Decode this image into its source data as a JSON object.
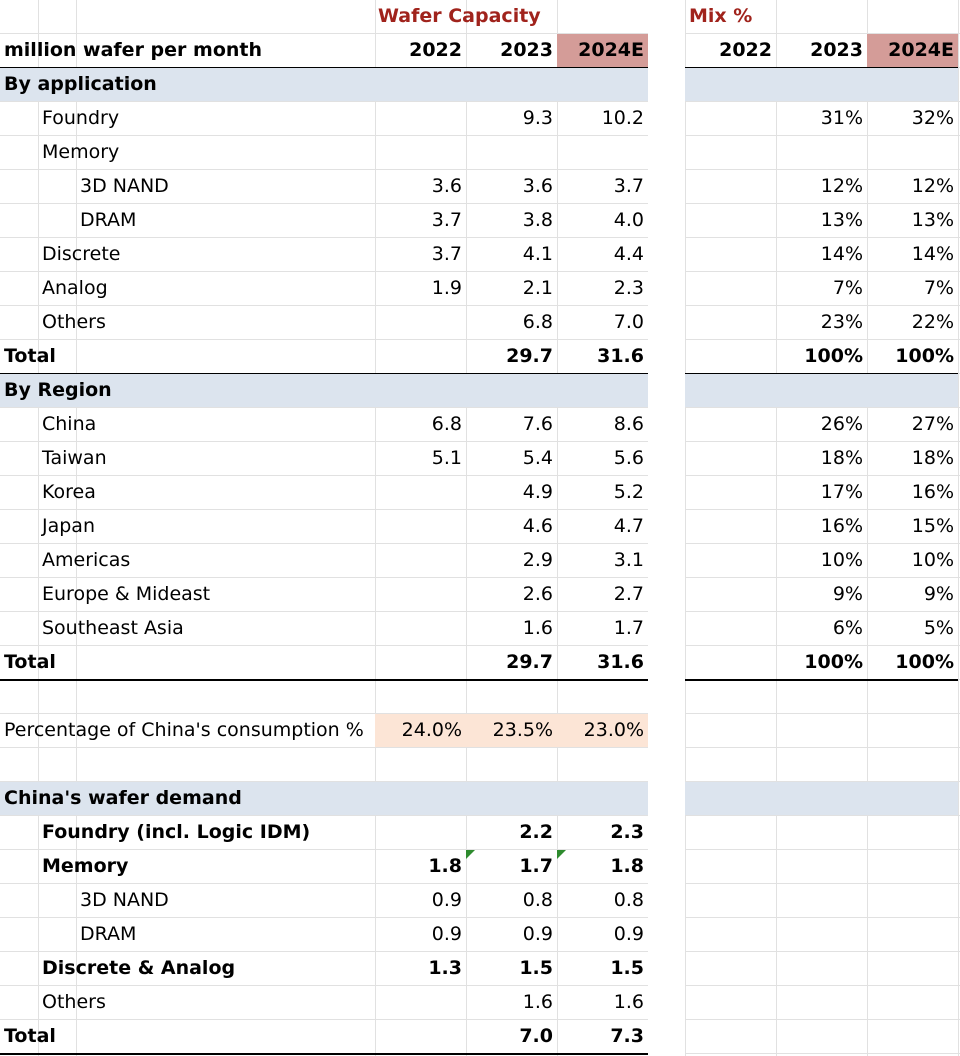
{
  "headings": {
    "wafer_capacity": "Wafer Capacity",
    "mix": "Mix %"
  },
  "unit_label": "million wafer per month",
  "years": [
    "2022",
    "2023",
    "2024E"
  ],
  "colors": {
    "heading_red": "#a0231c",
    "section_band": "#dce4ee",
    "highlight_2024E": "#d49c98",
    "china_share_fill": "#fce5d6"
  },
  "by_application": {
    "title": "By application",
    "rows": [
      {
        "label": "Foundry",
        "indent": 1,
        "bold": false,
        "cap": [
          "",
          "9.3",
          "10.2"
        ],
        "mix": [
          "",
          "31%",
          "32%"
        ]
      },
      {
        "label": "Memory",
        "indent": 1,
        "bold": false,
        "cap": [
          "",
          "",
          ""
        ],
        "mix": [
          "",
          "",
          ""
        ]
      },
      {
        "label": "3D NAND",
        "indent": 2,
        "bold": false,
        "cap": [
          "3.6",
          "3.6",
          "3.7"
        ],
        "mix": [
          "",
          "12%",
          "12%"
        ]
      },
      {
        "label": "DRAM",
        "indent": 2,
        "bold": false,
        "cap": [
          "3.7",
          "3.8",
          "4.0"
        ],
        "mix": [
          "",
          "13%",
          "13%"
        ]
      },
      {
        "label": "Discrete",
        "indent": 1,
        "bold": false,
        "cap": [
          "3.7",
          "4.1",
          "4.4"
        ],
        "mix": [
          "",
          "14%",
          "14%"
        ]
      },
      {
        "label": "Analog",
        "indent": 1,
        "bold": false,
        "cap": [
          "1.9",
          "2.1",
          "2.3"
        ],
        "mix": [
          "",
          "7%",
          "7%"
        ]
      },
      {
        "label": "Others",
        "indent": 1,
        "bold": false,
        "cap": [
          "",
          "6.8",
          "7.0"
        ],
        "mix": [
          "",
          "23%",
          "22%"
        ]
      }
    ],
    "total": {
      "label": "Total",
      "cap": [
        "",
        "29.7",
        "31.6"
      ],
      "mix": [
        "",
        "100%",
        "100%"
      ]
    }
  },
  "by_region": {
    "title": "By Region",
    "rows": [
      {
        "label": "China",
        "indent": 1,
        "bold": false,
        "cap": [
          "6.8",
          "7.6",
          "8.6"
        ],
        "mix": [
          "",
          "26%",
          "27%"
        ]
      },
      {
        "label": "Taiwan",
        "indent": 1,
        "bold": false,
        "cap": [
          "5.1",
          "5.4",
          "5.6"
        ],
        "mix": [
          "",
          "18%",
          "18%"
        ]
      },
      {
        "label": "Korea",
        "indent": 1,
        "bold": false,
        "cap": [
          "",
          "4.9",
          "5.2"
        ],
        "mix": [
          "",
          "17%",
          "16%"
        ]
      },
      {
        "label": "Japan",
        "indent": 1,
        "bold": false,
        "cap": [
          "",
          "4.6",
          "4.7"
        ],
        "mix": [
          "",
          "16%",
          "15%"
        ]
      },
      {
        "label": "Americas",
        "indent": 1,
        "bold": false,
        "cap": [
          "",
          "2.9",
          "3.1"
        ],
        "mix": [
          "",
          "10%",
          "10%"
        ]
      },
      {
        "label": "Europe & Mideast",
        "indent": 1,
        "bold": false,
        "cap": [
          "",
          "2.6",
          "2.7"
        ],
        "mix": [
          "",
          "9%",
          "9%"
        ]
      },
      {
        "label": "Southeast Asia",
        "indent": 1,
        "bold": false,
        "cap": [
          "",
          "1.6",
          "1.7"
        ],
        "mix": [
          "",
          "6%",
          "5%"
        ]
      }
    ],
    "total": {
      "label": "Total",
      "cap": [
        "",
        "29.7",
        "31.6"
      ],
      "mix": [
        "",
        "100%",
        "100%"
      ]
    }
  },
  "china_consumption": {
    "label": "Percentage of China's consumption %",
    "values": [
      "24.0%",
      "23.5%",
      "23.0%"
    ]
  },
  "china_demand": {
    "title": "China's wafer demand",
    "rows": [
      {
        "label": "Foundry (incl. Logic IDM)",
        "indent": 1,
        "bold": true,
        "cap": [
          "",
          "2.2",
          "2.3"
        ]
      },
      {
        "label": "Memory",
        "indent": 1,
        "bold": true,
        "cap": [
          "1.8",
          "1.7",
          "1.8"
        ]
      },
      {
        "label": "3D NAND",
        "indent": 2,
        "bold": false,
        "cap": [
          "0.9",
          "0.8",
          "0.8"
        ]
      },
      {
        "label": "DRAM",
        "indent": 2,
        "bold": false,
        "cap": [
          "0.9",
          "0.9",
          "0.9"
        ]
      },
      {
        "label": "Discrete & Analog",
        "indent": 1,
        "bold": true,
        "cap": [
          "1.3",
          "1.5",
          "1.5"
        ]
      },
      {
        "label": "Others",
        "indent": 1,
        "bold": false,
        "cap": [
          "",
          "1.6",
          "1.6"
        ]
      }
    ],
    "total": {
      "label": "Total",
      "cap": [
        "",
        "7.0",
        "7.3"
      ]
    }
  }
}
